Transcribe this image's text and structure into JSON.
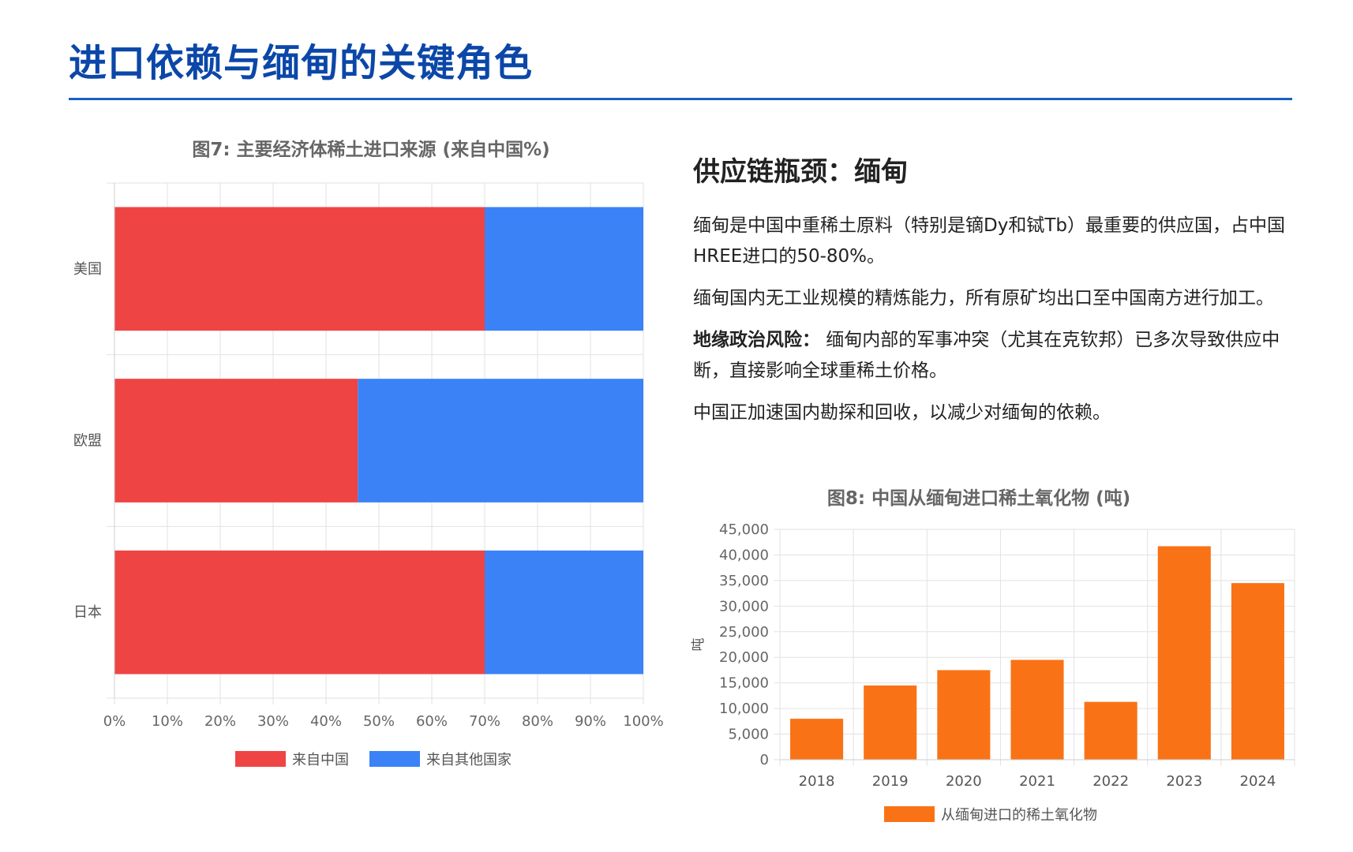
{
  "page": {
    "title": "进口依赖与缅甸的关键角色"
  },
  "right_panel": {
    "heading": "供应链瓶颈：缅甸",
    "paragraphs": [
      {
        "bold": "",
        "text": "缅甸是中国中重稀土原料（特别是镝Dy和铽Tb）最重要的供应国，占中国HREE进口的50-80%。"
      },
      {
        "bold": "",
        "text": "缅甸国内无工业规模的精炼能力，所有原矿均出口至中国南方进行加工。"
      },
      {
        "bold": "地缘政治风险：",
        "text": " 缅甸内部的军事冲突（尤其在克钦邦）已多次导致供应中断，直接影响全球重稀土价格。"
      },
      {
        "bold": "",
        "text": "中国正加速国内勘探和回收，以减少对缅甸的依赖。"
      }
    ]
  },
  "chart_data": [
    {
      "type": "bar",
      "orientation": "horizontal",
      "stacked": true,
      "title": "图7: 主要经济体稀土进口来源 (来自中国%)",
      "categories": [
        "美国",
        "欧盟",
        "日本"
      ],
      "series": [
        {
          "name": "来自中国",
          "values": [
            70,
            46,
            70
          ],
          "color": "#ef4444"
        },
        {
          "name": "来自其他国家",
          "values": [
            30,
            54,
            30
          ],
          "color": "#3b82f6"
        }
      ],
      "xlim": [
        0,
        100
      ],
      "x_ticks": [
        "0%",
        "10%",
        "20%",
        "30%",
        "40%",
        "50%",
        "60%",
        "70%",
        "80%",
        "90%",
        "100%"
      ],
      "grid": true,
      "legend": "bottom"
    },
    {
      "type": "bar",
      "title": "图8: 中国从缅甸进口稀土氧化物 (吨)",
      "categories": [
        "2018",
        "2019",
        "2020",
        "2021",
        "2022",
        "2023",
        "2024"
      ],
      "series": [
        {
          "name": "从缅甸进口的稀土氧化物",
          "values": [
            8000,
            14500,
            17500,
            19500,
            11300,
            41700,
            34500
          ],
          "color": "#f97316"
        }
      ],
      "ylabel": "吨",
      "ylim": [
        0,
        45000
      ],
      "y_ticks": [
        "0",
        "5,000",
        "10,000",
        "15,000",
        "20,000",
        "25,000",
        "30,000",
        "35,000",
        "40,000",
        "45,000"
      ],
      "grid": true,
      "legend": "bottom"
    }
  ]
}
